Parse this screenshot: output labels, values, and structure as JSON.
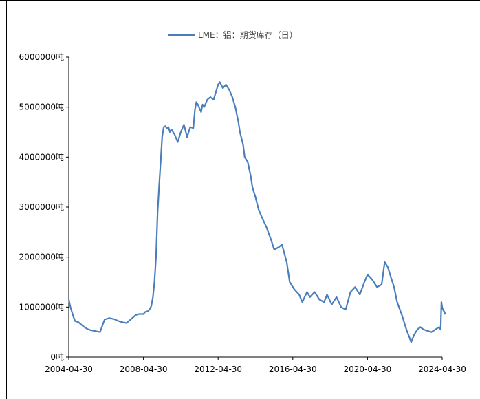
{
  "chart_data": {
    "type": "line",
    "title": "",
    "xlabel": "",
    "ylabel": "",
    "legend": {
      "position": "top-center"
    },
    "grid": false,
    "x_ticks": [
      "2004-04-30",
      "2008-04-30",
      "2012-04-30",
      "2016-04-30",
      "2020-04-30",
      "2024-04-30"
    ],
    "y_tick_labels": [
      "0吨",
      "1000000吨",
      "2000000吨",
      "3000000吨",
      "4000000吨",
      "5000000吨",
      "6000000吨"
    ],
    "ylim": [
      0,
      6000000
    ],
    "xlim": [
      "2004-04-30",
      "2024-04-30"
    ],
    "series": [
      {
        "name": "LME：铝：期货库存（日）",
        "color": "#4a7ebb",
        "x": [
          "2004-04-30",
          "2004-06-01",
          "2004-08-01",
          "2004-09-01",
          "2004-11-01",
          "2005-02-01",
          "2005-05-01",
          "2005-07-01",
          "2005-10-01",
          "2006-01-01",
          "2006-04-01",
          "2006-07-01",
          "2006-10-01",
          "2007-01-01",
          "2007-03-01",
          "2007-06-01",
          "2007-09-01",
          "2007-12-01",
          "2008-02-01",
          "2008-04-30",
          "2008-06-01",
          "2008-08-01",
          "2008-09-01",
          "2008-10-01",
          "2008-11-01",
          "2008-12-01",
          "2009-01-01",
          "2009-02-01",
          "2009-03-01",
          "2009-04-01",
          "2009-05-01",
          "2009-06-01",
          "2009-07-01",
          "2009-08-01",
          "2009-09-01",
          "2009-10-01",
          "2009-11-01",
          "2010-01-01",
          "2010-03-01",
          "2010-05-01",
          "2010-07-01",
          "2010-09-01",
          "2010-11-01",
          "2011-01-01",
          "2011-02-01",
          "2011-03-01",
          "2011-04-01",
          "2011-06-01",
          "2011-07-01",
          "2011-08-01",
          "2011-10-01",
          "2011-12-01",
          "2012-02-01",
          "2012-04-30",
          "2012-06-01",
          "2012-08-01",
          "2012-10-01",
          "2012-12-01",
          "2013-02-01",
          "2013-04-01",
          "2013-06-01",
          "2013-07-01",
          "2013-09-01",
          "2013-10-01",
          "2013-12-01",
          "2014-02-01",
          "2014-03-01",
          "2014-05-01",
          "2014-07-01",
          "2014-09-01",
          "2014-12-01",
          "2015-03-01",
          "2015-05-01",
          "2015-08-01",
          "2015-10-01",
          "2016-01-01",
          "2016-03-01",
          "2016-06-01",
          "2016-09-01",
          "2016-11-01",
          "2017-02-01",
          "2017-04-01",
          "2017-07-01",
          "2017-10-01",
          "2018-01-01",
          "2018-03-01",
          "2018-06-01",
          "2018-09-01",
          "2018-12-01",
          "2019-03-01",
          "2019-06-01",
          "2019-09-01",
          "2019-12-01",
          "2020-03-01",
          "2020-05-01",
          "2020-08-01",
          "2020-11-01",
          "2021-02-01",
          "2021-04-01",
          "2021-06-01",
          "2021-08-01",
          "2021-10-01",
          "2021-12-01",
          "2022-03-01",
          "2022-06-01",
          "2022-09-01",
          "2022-11-01",
          "2023-01-01",
          "2023-03-01",
          "2023-05-01",
          "2023-08-01",
          "2023-10-01",
          "2024-01-01",
          "2024-03-01",
          "2024-04-01",
          "2024-04-15",
          "2024-04-30",
          "2024-05-15",
          "2024-06-15",
          "2024-07-01"
        ],
        "values": [
          1150000,
          1000000,
          800000,
          720000,
          700000,
          620000,
          560000,
          540000,
          520000,
          500000,
          750000,
          780000,
          760000,
          720000,
          700000,
          680000,
          760000,
          840000,
          860000,
          860000,
          900000,
          920000,
          960000,
          1020000,
          1200000,
          1500000,
          2000000,
          2900000,
          3400000,
          3900000,
          4400000,
          4600000,
          4620000,
          4580000,
          4600000,
          4500000,
          4550000,
          4450000,
          4300000,
          4500000,
          4650000,
          4400000,
          4600000,
          4580000,
          4950000,
          5100000,
          5050000,
          4900000,
          5050000,
          5000000,
          5150000,
          5200000,
          5150000,
          5450000,
          5500000,
          5380000,
          5450000,
          5350000,
          5200000,
          5000000,
          4700000,
          4500000,
          4250000,
          4000000,
          3900000,
          3600000,
          3400000,
          3200000,
          2950000,
          2800000,
          2600000,
          2350000,
          2150000,
          2200000,
          2250000,
          1900000,
          1500000,
          1350000,
          1250000,
          1100000,
          1300000,
          1200000,
          1300000,
          1150000,
          1100000,
          1250000,
          1050000,
          1200000,
          1000000,
          950000,
          1300000,
          1400000,
          1250000,
          1500000,
          1650000,
          1550000,
          1400000,
          1450000,
          1900000,
          1800000,
          1600000,
          1400000,
          1100000,
          850000,
          550000,
          300000,
          450000,
          550000,
          600000,
          550000,
          520000,
          500000,
          560000,
          600000,
          550000,
          1100000,
          1000000,
          950000,
          900000,
          850000
        ]
      }
    ]
  }
}
